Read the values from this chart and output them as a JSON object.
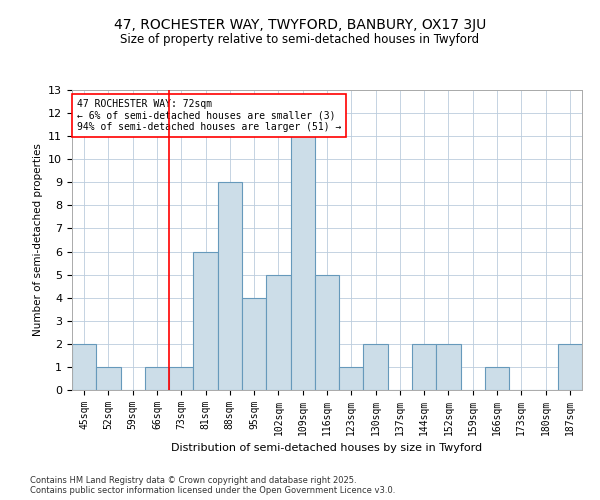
{
  "title": "47, ROCHESTER WAY, TWYFORD, BANBURY, OX17 3JU",
  "subtitle": "Size of property relative to semi-detached houses in Twyford",
  "xlabel": "Distribution of semi-detached houses by size in Twyford",
  "ylabel": "Number of semi-detached properties",
  "bins": [
    "45sqm",
    "52sqm",
    "59sqm",
    "66sqm",
    "73sqm",
    "81sqm",
    "88sqm",
    "95sqm",
    "102sqm",
    "109sqm",
    "116sqm",
    "123sqm",
    "130sqm",
    "137sqm",
    "144sqm",
    "152sqm",
    "159sqm",
    "166sqm",
    "173sqm",
    "180sqm",
    "187sqm"
  ],
  "values": [
    2,
    1,
    0,
    1,
    1,
    6,
    9,
    4,
    5,
    11,
    5,
    1,
    2,
    0,
    2,
    2,
    0,
    1,
    0,
    0,
    2
  ],
  "bar_color": "#ccdde8",
  "bar_edge_color": "#6699bb",
  "highlight_line_bin_index": 4,
  "highlight_label": "47 ROCHESTER WAY: 72sqm",
  "pct_smaller": "6% of semi-detached houses are smaller (3)",
  "pct_larger": "94% of semi-detached houses are larger (51)",
  "ylim": [
    0,
    13
  ],
  "yticks": [
    0,
    1,
    2,
    3,
    4,
    5,
    6,
    7,
    8,
    9,
    10,
    11,
    12,
    13
  ],
  "grid_color": "#bbccdd",
  "background_color": "#ffffff",
  "footnote1": "Contains HM Land Registry data © Crown copyright and database right 2025.",
  "footnote2": "Contains public sector information licensed under the Open Government Licence v3.0."
}
